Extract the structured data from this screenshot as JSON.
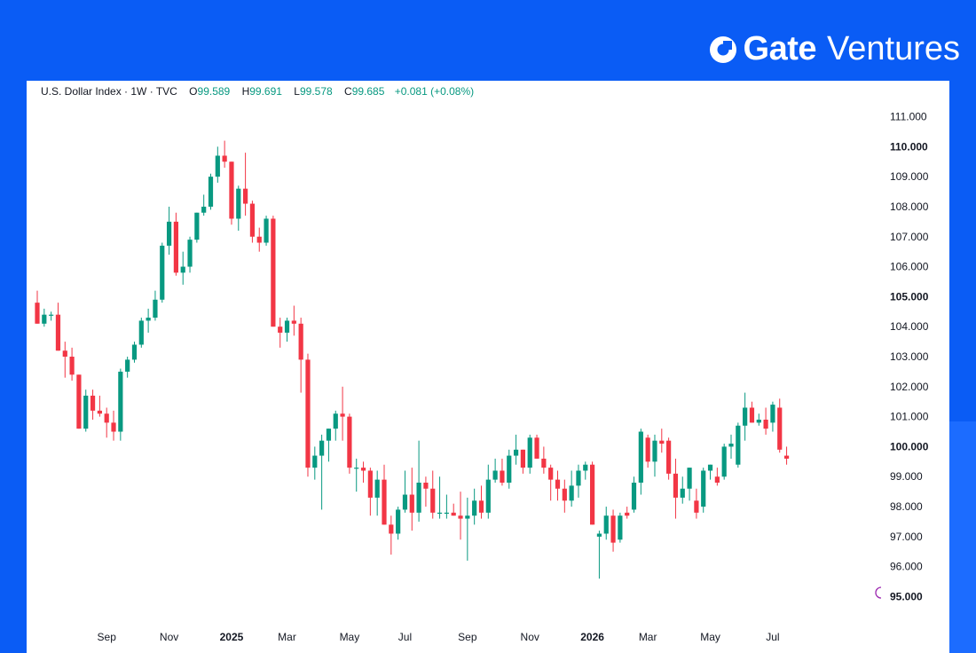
{
  "brand": {
    "name": "Gate",
    "suffix": "Ventures",
    "color": "#ffffff"
  },
  "legend": {
    "symbol": "U.S. Dollar Index · 1W · TVC",
    "o_label": "O",
    "o_value": "99.589",
    "h_label": "H",
    "h_value": "99.691",
    "l_label": "L",
    "l_value": "99.578",
    "c_label": "C",
    "c_value": "99.685",
    "change": "+0.081 (+0.08%)"
  },
  "colors": {
    "up": "#089981",
    "down": "#f23645",
    "background": "#0a5cf5"
  },
  "chart_data": {
    "type": "candlestick",
    "title": "U.S. Dollar Index · 1W · TVC",
    "ylim": [
      94.6,
      111.4
    ],
    "y_ticks": [
      "111.000",
      "110.000",
      "109.000",
      "108.000",
      "107.000",
      "106.000",
      "105.000",
      "104.000",
      "103.000",
      "102.000",
      "101.000",
      "100.000",
      "99.000",
      "98.000",
      "97.000",
      "96.000",
      "95.000"
    ],
    "y_bold_ticks": [
      "110.000",
      "105.000",
      "100.000",
      "95.000"
    ],
    "x_labels": [
      {
        "label": "Sep",
        "week": 10
      },
      {
        "label": "Nov",
        "week": 19
      },
      {
        "label": "2025",
        "week": 28,
        "bold": true
      },
      {
        "label": "Mar",
        "week": 36
      },
      {
        "label": "May",
        "week": 45
      },
      {
        "label": "Jul",
        "week": 53
      },
      {
        "label": "Sep",
        "week": 62
      },
      {
        "label": "Nov",
        "week": 71
      },
      {
        "label": "2026",
        "week": 80,
        "bold": true
      },
      {
        "label": "Mar",
        "week": 88
      },
      {
        "label": "May",
        "week": 97
      },
      {
        "label": "Jul",
        "week": 106
      }
    ],
    "candles": [
      [
        104.8,
        105.2,
        104.1,
        104.1
      ],
      [
        104.1,
        104.6,
        104.0,
        104.4
      ],
      [
        104.4,
        104.5,
        104.2,
        104.4
      ],
      [
        104.4,
        104.8,
        103.2,
        103.2
      ],
      [
        103.2,
        103.5,
        102.3,
        103.0
      ],
      [
        103.0,
        103.3,
        102.2,
        102.4
      ],
      [
        102.4,
        102.4,
        100.6,
        100.6
      ],
      [
        100.6,
        101.9,
        100.5,
        101.7
      ],
      [
        101.7,
        101.9,
        100.9,
        101.2
      ],
      [
        101.2,
        101.7,
        101.0,
        101.1
      ],
      [
        101.1,
        101.3,
        100.3,
        100.8
      ],
      [
        100.8,
        101.2,
        100.2,
        100.5
      ],
      [
        100.5,
        102.6,
        100.2,
        102.5
      ],
      [
        102.5,
        103.0,
        102.3,
        102.9
      ],
      [
        102.9,
        103.5,
        102.8,
        103.4
      ],
      [
        103.4,
        104.3,
        103.3,
        104.2
      ],
      [
        104.2,
        104.6,
        103.8,
        104.3
      ],
      [
        104.3,
        105.2,
        104.2,
        104.9
      ],
      [
        104.9,
        106.8,
        104.8,
        106.7
      ],
      [
        106.7,
        108.0,
        106.4,
        107.5
      ],
      [
        107.5,
        107.8,
        105.7,
        105.8
      ],
      [
        105.8,
        106.5,
        105.4,
        106.0
      ],
      [
        106.0,
        107.0,
        105.8,
        106.9
      ],
      [
        106.9,
        107.8,
        106.8,
        107.8
      ],
      [
        107.8,
        108.4,
        107.7,
        108.0
      ],
      [
        108.0,
        109.1,
        107.9,
        109.0
      ],
      [
        109.0,
        110.0,
        108.8,
        109.7
      ],
      [
        109.7,
        110.2,
        109.3,
        109.5
      ],
      [
        109.5,
        109.5,
        107.4,
        107.6
      ],
      [
        107.6,
        108.7,
        107.2,
        108.6
      ],
      [
        108.6,
        109.8,
        107.7,
        108.1
      ],
      [
        108.1,
        108.2,
        106.8,
        107.0
      ],
      [
        107.0,
        107.3,
        106.5,
        106.8
      ],
      [
        106.8,
        107.7,
        106.7,
        107.6
      ],
      [
        107.6,
        107.7,
        104.0,
        104.0
      ],
      [
        104.0,
        104.3,
        103.3,
        103.8
      ],
      [
        103.8,
        104.3,
        103.5,
        104.2
      ],
      [
        104.2,
        104.7,
        103.7,
        104.1
      ],
      [
        104.1,
        104.3,
        101.8,
        102.9
      ],
      [
        102.9,
        103.1,
        99.0,
        99.3
      ],
      [
        99.3,
        100.0,
        98.9,
        99.7
      ],
      [
        99.7,
        100.4,
        97.9,
        100.2
      ],
      [
        100.2,
        100.6,
        99.5,
        100.6
      ],
      [
        100.6,
        101.2,
        100.2,
        101.1
      ],
      [
        101.1,
        102.0,
        100.2,
        101.0
      ],
      [
        101.0,
        101.1,
        99.1,
        99.3
      ],
      [
        99.3,
        99.6,
        98.5,
        99.3
      ],
      [
        99.3,
        99.5,
        98.8,
        99.2
      ],
      [
        99.2,
        99.3,
        97.7,
        98.3
      ],
      [
        98.3,
        99.2,
        97.7,
        98.9
      ],
      [
        98.9,
        99.4,
        97.4,
        97.4
      ],
      [
        97.4,
        97.7,
        96.4,
        97.1
      ],
      [
        97.1,
        98.0,
        96.9,
        97.9
      ],
      [
        97.9,
        99.2,
        97.8,
        98.4
      ],
      [
        98.4,
        99.3,
        97.2,
        97.8
      ],
      [
        97.8,
        100.2,
        97.5,
        98.8
      ],
      [
        98.8,
        99.0,
        98.0,
        98.6
      ],
      [
        98.6,
        99.2,
        97.6,
        97.8
      ],
      [
        97.8,
        99.0,
        97.6,
        97.8
      ],
      [
        97.8,
        98.4,
        97.6,
        97.8
      ],
      [
        97.8,
        98.1,
        97.7,
        97.7
      ],
      [
        97.7,
        98.5,
        96.9,
        97.6
      ],
      [
        97.6,
        98.3,
        96.2,
        97.7
      ],
      [
        97.7,
        98.6,
        97.4,
        98.2
      ],
      [
        98.2,
        98.7,
        97.6,
        97.8
      ],
      [
        97.8,
        99.4,
        97.6,
        98.9
      ],
      [
        98.9,
        99.6,
        98.8,
        99.2
      ],
      [
        99.2,
        99.6,
        98.7,
        98.8
      ],
      [
        98.8,
        99.9,
        98.6,
        99.7
      ],
      [
        99.7,
        100.4,
        99.4,
        99.9
      ],
      [
        99.9,
        99.9,
        99.1,
        99.3
      ],
      [
        99.3,
        100.4,
        99.1,
        100.3
      ],
      [
        100.3,
        100.4,
        99.6,
        99.6
      ],
      [
        99.6,
        100.0,
        99.1,
        99.3
      ],
      [
        99.3,
        99.4,
        98.2,
        98.9
      ],
      [
        98.9,
        99.2,
        98.2,
        98.6
      ],
      [
        98.6,
        98.9,
        97.8,
        98.2
      ],
      [
        98.2,
        99.2,
        98.0,
        98.7
      ],
      [
        98.7,
        99.4,
        98.3,
        99.2
      ],
      [
        99.2,
        99.5,
        98.9,
        99.4
      ],
      [
        99.4,
        99.5,
        97.4,
        97.4
      ],
      [
        97.0,
        97.2,
        95.6,
        97.1
      ],
      [
        97.1,
        98.0,
        96.9,
        97.7
      ],
      [
        97.7,
        97.9,
        96.5,
        96.8
      ],
      [
        96.9,
        97.8,
        96.8,
        97.7
      ],
      [
        97.8,
        98.0,
        97.6,
        97.7
      ],
      [
        97.9,
        99.0,
        97.8,
        98.8
      ],
      [
        98.8,
        100.6,
        98.4,
        100.5
      ],
      [
        100.3,
        100.4,
        99.3,
        99.5
      ],
      [
        99.5,
        100.4,
        99.0,
        100.2
      ],
      [
        100.2,
        100.6,
        99.8,
        100.1
      ],
      [
        100.2,
        100.3,
        98.9,
        99.1
      ],
      [
        99.1,
        99.6,
        97.6,
        98.3
      ],
      [
        98.3,
        99.0,
        98.1,
        98.6
      ],
      [
        98.6,
        99.3,
        98.2,
        99.3
      ],
      [
        98.2,
        98.6,
        97.6,
        97.8
      ],
      [
        98.0,
        99.3,
        97.8,
        99.2
      ],
      [
        99.2,
        99.4,
        98.9,
        99.4
      ],
      [
        99.0,
        99.3,
        98.7,
        98.8
      ],
      [
        99.0,
        100.1,
        98.9,
        100.0
      ],
      [
        100.0,
        100.4,
        99.6,
        100.1
      ],
      [
        99.4,
        100.8,
        99.3,
        100.7
      ],
      [
        100.7,
        101.8,
        100.2,
        101.3
      ],
      [
        101.3,
        101.5,
        100.8,
        100.8
      ],
      [
        100.8,
        101.1,
        100.7,
        100.9
      ],
      [
        100.9,
        101.3,
        100.4,
        100.6
      ],
      [
        100.8,
        101.5,
        100.5,
        101.4
      ],
      [
        101.3,
        101.6,
        99.8,
        99.9
      ],
      [
        99.7,
        100.0,
        99.4,
        99.6
      ]
    ]
  }
}
